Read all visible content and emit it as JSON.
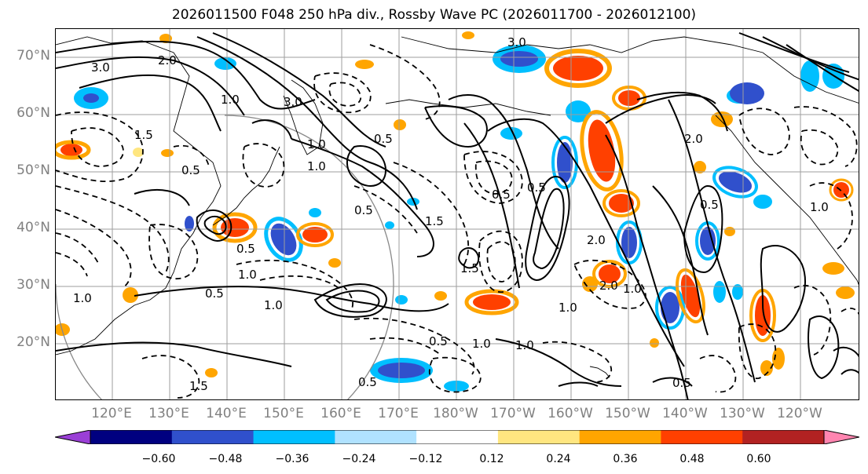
{
  "title": "2026011500 F048 250 hPa div., Rossby Wave PC (2026011700 - 2026012100)",
  "latitude_labels": [
    "70°N",
    "60°N",
    "50°N",
    "40°N",
    "30°N",
    "20°N"
  ],
  "longitude_labels": [
    "120°E",
    "130°E",
    "140°E",
    "150°E",
    "160°E",
    "170°E",
    "180°W",
    "170°W",
    "160°W",
    "150°W",
    "140°W",
    "130°W",
    "120°W"
  ],
  "colorbar": {
    "ticks": [
      "−0.60",
      "−0.48",
      "−0.36",
      "−0.24",
      "−0.12",
      "0.12",
      "0.24",
      "0.36",
      "0.48",
      "0.60"
    ],
    "colors": [
      "#9a3fd6",
      "#000080",
      "#3050cc",
      "#00bfff",
      "#b0e2ff",
      "#ffffff",
      "#ffe680",
      "#ffa500",
      "#ff4000",
      "#b22222",
      "#ff85b0"
    ]
  },
  "contour_labels": [
    "3.0",
    "3.0",
    "2.0",
    "1.0",
    "1.0",
    "1.0",
    "0.5",
    "0.5",
    "0.5",
    "1.5",
    "0.5",
    "0.5",
    "0.5",
    "2.0",
    "1.0",
    "0.5",
    "1.0",
    "0.5",
    "1.0",
    "1.5",
    "2.0",
    "1.0",
    "3.0",
    "0.5",
    "1.0",
    "1.0",
    "1.0",
    "0.5",
    "1.5",
    "1.0",
    "2.0",
    "0.5",
    "1.5"
  ]
}
